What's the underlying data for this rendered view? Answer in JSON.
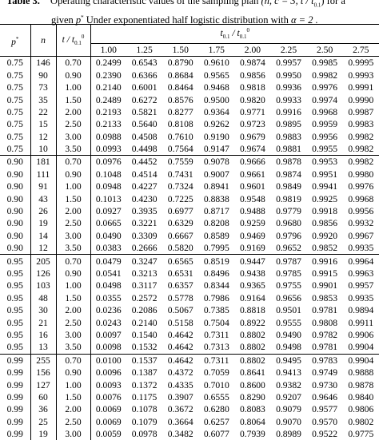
{
  "caption": {
    "label": "Table 3.",
    "text1": "Operating characteristic values of the sampling plan",
    "plan": "(n, c = 3, t / t",
    "plan_sub": "0.1",
    "plan_end": ") for a",
    "text2": "given",
    "pstar": "p",
    "pstar_sup": "*",
    "text3": "Under exponentiated half logistic distribution with",
    "alpha": "α = 2 ."
  },
  "header": {
    "p": "p",
    "p_sup": "*",
    "n": "n",
    "t_main": "t / t",
    "t_sub": "0.1",
    "t_sup": "0",
    "group_main": "t",
    "group_sub": "0.1",
    "group_main2": " / t",
    "group_sub2": "0.1",
    "group_sup2": "0",
    "columns": [
      "1.00",
      "1.25",
      "1.50",
      "1.75",
      "2.00",
      "2.25",
      "2.50",
      "2.75"
    ]
  },
  "table": {
    "rows": [
      [
        "0.75",
        "146",
        "0.70",
        "0.2499",
        "0.6543",
        "0.8790",
        "0.9610",
        "0.9874",
        "0.9957",
        "0.9985",
        "0.9995"
      ],
      [
        "0.75",
        "90",
        "0.90",
        "0.2390",
        "0.6366",
        "0.8684",
        "0.9565",
        "0.9856",
        "0.9950",
        "0.9982",
        "0.9993"
      ],
      [
        "0.75",
        "73",
        "1.00",
        "0.2140",
        "0.6001",
        "0.8464",
        "0.9468",
        "0.9818",
        "0.9936",
        "0.9976",
        "0.9991"
      ],
      [
        "0.75",
        "35",
        "1.50",
        "0.2489",
        "0.6272",
        "0.8576",
        "0.9500",
        "0.9820",
        "0.9933",
        "0.9974",
        "0.9990"
      ],
      [
        "0.75",
        "22",
        "2.00",
        "0.2193",
        "0.5821",
        "0.8277",
        "0.9364",
        "0.9771",
        "0.9916",
        "0.9968",
        "0.9987"
      ],
      [
        "0.75",
        "15",
        "2.50",
        "0.2133",
        "0.5640",
        "0.8108",
        "0.9262",
        "0.9723",
        "0.9895",
        "0.9959",
        "0.9983"
      ],
      [
        "0.75",
        "12",
        "3.00",
        "0.0988",
        "0.4508",
        "0.7610",
        "0.9190",
        "0.9679",
        "0.9883",
        "0.9956",
        "0.9982"
      ],
      [
        "0.75",
        "10",
        "3.50",
        "0.0993",
        "0.4498",
        "0.7564",
        "0.9147",
        "0.9674",
        "0.9881",
        "0.9955",
        "0.9982"
      ],
      [
        "0.90",
        "181",
        "0.70",
        "0.0976",
        "0.4452",
        "0.7559",
        "0.9078",
        "0.9666",
        "0.9878",
        "0.9953",
        "0.9982"
      ],
      [
        "0.90",
        "111",
        "0.90",
        "0.1048",
        "0.4514",
        "0.7431",
        "0.9007",
        "0.9661",
        "0.9874",
        "0.9951",
        "0.9980"
      ],
      [
        "0.90",
        "91",
        "1.00",
        "0.0948",
        "0.4227",
        "0.7324",
        "0.8941",
        "0.9601",
        "0.9849",
        "0.9941",
        "0.9976"
      ],
      [
        "0.90",
        "43",
        "1.50",
        "0.1013",
        "0.4230",
        "0.7225",
        "0.8838",
        "0.9548",
        "0.9819",
        "0.9925",
        "0.9968"
      ],
      [
        "0.90",
        "26",
        "2.00",
        "0.0927",
        "0.3935",
        "0.6977",
        "0.8717",
        "0.9488",
        "0.9779",
        "0.9918",
        "0.9956"
      ],
      [
        "0.90",
        "19",
        "2.50",
        "0.0665",
        "0.3221",
        "0.6329",
        "0.8208",
        "0.9259",
        "0.9680",
        "0.9856",
        "0.9932"
      ],
      [
        "0.90",
        "14",
        "3.00",
        "0.0490",
        "0.3309",
        "0.6667",
        "0.8589",
        "0.9469",
        "0.9796",
        "0.9920",
        "0.9967"
      ],
      [
        "0.90",
        "12",
        "3.50",
        "0.0383",
        "0.2666",
        "0.5820",
        "0.7995",
        "0.9169",
        "0.9652",
        "0.9852",
        "0.9935"
      ],
      [
        "0.95",
        "205",
        "0.70",
        "0.0479",
        "0.3247",
        "0.6565",
        "0.8519",
        "0.9447",
        "0.9787",
        "0.9916",
        "0.9964"
      ],
      [
        "0.95",
        "126",
        "0.90",
        "0.0541",
        "0.3213",
        "0.6531",
        "0.8496",
        "0.9438",
        "0.9785",
        "0.9915",
        "0.9963"
      ],
      [
        "0.95",
        "103",
        "1.00",
        "0.0498",
        "0.3117",
        "0.6357",
        "0.8344",
        "0.9365",
        "0.9755",
        "0.9901",
        "0.9957"
      ],
      [
        "0.95",
        "48",
        "1.50",
        "0.0355",
        "0.2572",
        "0.5778",
        "0.7986",
        "0.9164",
        "0.9656",
        "0.9853",
        "0.9935"
      ],
      [
        "0.95",
        "30",
        "2.00",
        "0.0236",
        "0.2086",
        "0.5067",
        "0.7385",
        "0.8818",
        "0.9501",
        "0.9781",
        "0.9894"
      ],
      [
        "0.95",
        "21",
        "2.50",
        "0.0243",
        "0.2140",
        "0.5158",
        "0.7504",
        "0.8922",
        "0.9555",
        "0.9808",
        "0.9911"
      ],
      [
        "0.95",
        "16",
        "3.00",
        "0.0097",
        "0.1540",
        "0.4642",
        "0.7311",
        "0.8802",
        "0.9490",
        "0.9782",
        "0.9906"
      ],
      [
        "0.95",
        "13",
        "3.50",
        "0.0098",
        "0.1532",
        "0.4642",
        "0.7313",
        "0.8802",
        "0.9498",
        "0.9781",
        "0.9904"
      ],
      [
        "0.99",
        "255",
        "0.70",
        "0.0100",
        "0.1537",
        "0.4642",
        "0.7311",
        "0.8802",
        "0.9495",
        "0.9783",
        "0.9904"
      ],
      [
        "0.99",
        "156",
        "0.90",
        "0.0096",
        "0.1387",
        "0.4372",
        "0.7059",
        "0.8641",
        "0.9413",
        "0.9749",
        "0.9888"
      ],
      [
        "0.99",
        "127",
        "1.00",
        "0.0093",
        "0.1372",
        "0.4335",
        "0.7010",
        "0.8600",
        "0.9382",
        "0.9730",
        "0.9878"
      ],
      [
        "0.99",
        "60",
        "1.50",
        "0.0076",
        "0.1175",
        "0.3907",
        "0.6555",
        "0.8290",
        "0.9207",
        "0.9646",
        "0.9840"
      ],
      [
        "0.99",
        "36",
        "2.00",
        "0.0069",
        "0.1078",
        "0.3672",
        "0.6280",
        "0.8083",
        "0.9079",
        "0.9577",
        "0.9806"
      ],
      [
        "0.99",
        "25",
        "2.50",
        "0.0069",
        "0.1079",
        "0.3664",
        "0.6257",
        "0.8064",
        "0.9070",
        "0.9570",
        "0.9802"
      ],
      [
        "0.99",
        "19",
        "3.00",
        "0.0059",
        "0.0978",
        "0.3482",
        "0.6077",
        "0.7939",
        "0.8989",
        "0.9522",
        "0.9775"
      ]
    ]
  }
}
